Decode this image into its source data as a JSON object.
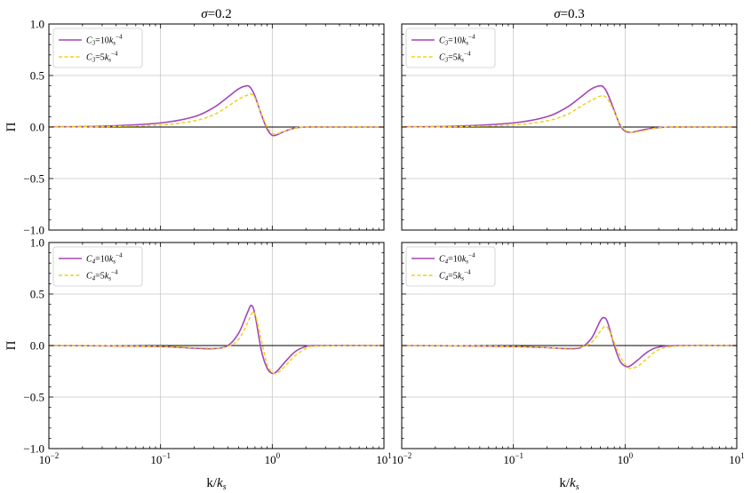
{
  "chart_data": [
    {
      "type": "line",
      "title": "σ=0.2",
      "title_sym": "σ",
      "title_val": "=0.2",
      "ylabel": "Π",
      "xlabel": "",
      "xscale": "log",
      "xlim": [
        0.01,
        10
      ],
      "ylim": [
        -1.0,
        1.0
      ],
      "grid": true,
      "legend_loc": "upper-left",
      "x": [
        0.01,
        0.03,
        0.1,
        0.2,
        0.3,
        0.4,
        0.5,
        0.6,
        0.65,
        0.7,
        0.8,
        0.9,
        1.0,
        1.1,
        1.3,
        1.6,
        2.0,
        3.0,
        10
      ],
      "series": [
        {
          "name": "C3=10ks^-4",
          "sym": "C",
          "sub": "3",
          "coef": "=10",
          "kvar": "k",
          "ksub": "s",
          "sup": "−4",
          "values": [
            0.002,
            0.008,
            0.04,
            0.1,
            0.19,
            0.29,
            0.37,
            0.4,
            0.37,
            0.3,
            0.12,
            -0.02,
            -0.08,
            -0.075,
            -0.04,
            -0.01,
            0.0,
            0.0,
            0.0
          ],
          "style": "solid"
        },
        {
          "name": "C3=5ks^-4",
          "sym": "C",
          "sub": "3",
          "coef": "=5",
          "kvar": "k",
          "ksub": "s",
          "sup": "−4",
          "values": [
            0.001,
            0.004,
            0.02,
            0.06,
            0.12,
            0.2,
            0.27,
            0.31,
            0.32,
            0.28,
            0.13,
            0.0,
            -0.06,
            -0.065,
            -0.04,
            -0.01,
            0.0,
            0.0,
            0.0
          ],
          "style": "dashed"
        }
      ]
    },
    {
      "type": "line",
      "title": "σ=0.3",
      "title_sym": "σ",
      "title_val": "=0.3",
      "ylabel": "",
      "xlabel": "",
      "xscale": "log",
      "xlim": [
        0.01,
        10
      ],
      "ylim": [
        -1.0,
        1.0
      ],
      "grid": true,
      "legend_loc": "upper-left",
      "x": [
        0.01,
        0.03,
        0.1,
        0.2,
        0.3,
        0.4,
        0.5,
        0.6,
        0.65,
        0.7,
        0.8,
        0.9,
        1.0,
        1.15,
        1.4,
        1.8,
        2.5,
        4.0,
        10
      ],
      "series": [
        {
          "name": "C3=10ks^-4",
          "sym": "C",
          "sub": "3",
          "coef": "=10",
          "kvar": "k",
          "ksub": "s",
          "sup": "−4",
          "values": [
            0.002,
            0.008,
            0.04,
            0.1,
            0.19,
            0.29,
            0.37,
            0.4,
            0.38,
            0.32,
            0.16,
            0.02,
            -0.04,
            -0.05,
            -0.03,
            -0.01,
            0.0,
            0.0,
            0.0
          ],
          "style": "solid"
        },
        {
          "name": "C3=5ks^-4",
          "sym": "C",
          "sub": "3",
          "coef": "=5",
          "kvar": "k",
          "ksub": "s",
          "sup": "−4",
          "values": [
            0.001,
            0.004,
            0.02,
            0.06,
            0.12,
            0.2,
            0.26,
            0.3,
            0.3,
            0.27,
            0.15,
            0.03,
            -0.03,
            -0.05,
            -0.04,
            -0.015,
            0.0,
            0.0,
            0.0
          ],
          "style": "dashed"
        }
      ]
    },
    {
      "type": "line",
      "title": "",
      "ylabel": "Π",
      "xlabel": "k/ks",
      "xlabel_main": "k/",
      "xlabel_k": "k",
      "xlabel_sub": "s",
      "xscale": "log",
      "xlim": [
        0.01,
        10
      ],
      "ylim": [
        -1.0,
        1.0
      ],
      "grid": true,
      "legend_loc": "upper-left",
      "x": [
        0.01,
        0.03,
        0.1,
        0.2,
        0.3,
        0.4,
        0.5,
        0.6,
        0.65,
        0.7,
        0.8,
        0.9,
        1.0,
        1.1,
        1.3,
        1.6,
        2.0,
        2.5,
        10
      ],
      "series": [
        {
          "name": "C4=10ks^-4",
          "sym": "C",
          "sub": "4",
          "coef": "=10",
          "kvar": "k",
          "ksub": "s",
          "sup": "−4",
          "values": [
            0.0,
            -0.003,
            -0.01,
            -0.025,
            -0.03,
            0.0,
            0.12,
            0.32,
            0.39,
            0.3,
            -0.05,
            -0.22,
            -0.27,
            -0.25,
            -0.16,
            -0.06,
            -0.01,
            0.0,
            0.0
          ],
          "style": "solid"
        },
        {
          "name": "C4=5ks^-4",
          "sym": "C",
          "sub": "4",
          "coef": "=5",
          "kvar": "k",
          "ksub": "s",
          "sup": "−4",
          "values": [
            0.0,
            -0.002,
            -0.008,
            -0.02,
            -0.025,
            -0.01,
            0.06,
            0.22,
            0.3,
            0.31,
            0.05,
            -0.18,
            -0.26,
            -0.27,
            -0.2,
            -0.1,
            -0.03,
            -0.005,
            0.0
          ],
          "style": "dashed"
        }
      ]
    },
    {
      "type": "line",
      "title": "",
      "ylabel": "",
      "xlabel": "k/ks",
      "xlabel_main": "k/",
      "xlabel_k": "k",
      "xlabel_sub": "s",
      "xscale": "log",
      "xlim": [
        0.01,
        10
      ],
      "ylim": [
        -1.0,
        1.0
      ],
      "grid": true,
      "legend_loc": "upper-left",
      "x": [
        0.01,
        0.03,
        0.1,
        0.2,
        0.3,
        0.4,
        0.5,
        0.6,
        0.65,
        0.7,
        0.8,
        0.9,
        1.0,
        1.1,
        1.3,
        1.6,
        2.0,
        3.0,
        10
      ],
      "series": [
        {
          "name": "C4=10ks^-4",
          "sym": "C",
          "sub": "4",
          "coef": "=10",
          "kvar": "k",
          "ksub": "s",
          "sup": "−4",
          "values": [
            0.0,
            -0.003,
            -0.01,
            -0.02,
            -0.03,
            -0.02,
            0.07,
            0.24,
            0.27,
            0.22,
            0.0,
            -0.15,
            -0.2,
            -0.2,
            -0.14,
            -0.06,
            -0.015,
            0.0,
            0.0
          ],
          "style": "solid"
        },
        {
          "name": "C4=5ks^-4",
          "sym": "C",
          "sub": "4",
          "coef": "=5",
          "kvar": "k",
          "ksub": "s",
          "sup": "−4",
          "values": [
            0.0,
            -0.002,
            -0.008,
            -0.02,
            -0.025,
            -0.015,
            0.03,
            0.14,
            0.18,
            0.17,
            0.03,
            -0.1,
            -0.18,
            -0.22,
            -0.2,
            -0.12,
            -0.04,
            -0.005,
            0.0
          ],
          "style": "dashed"
        }
      ]
    }
  ],
  "colors": {
    "solid_series": "#a346b8",
    "dashed_series": "#eed21a",
    "grid": "#c8c8c8",
    "zero_line": "#000000",
    "axis": "#000000"
  },
  "axes": {
    "y_ticks": [
      "1.0",
      "0.5",
      "0.0",
      "−0.5",
      "−1.0"
    ],
    "x_ticks": [
      {
        "base": "10",
        "exp": "−2"
      },
      {
        "base": "10",
        "exp": "−1"
      },
      {
        "base": "10",
        "exp": "0"
      },
      {
        "base": "10",
        "exp": "1"
      }
    ]
  }
}
